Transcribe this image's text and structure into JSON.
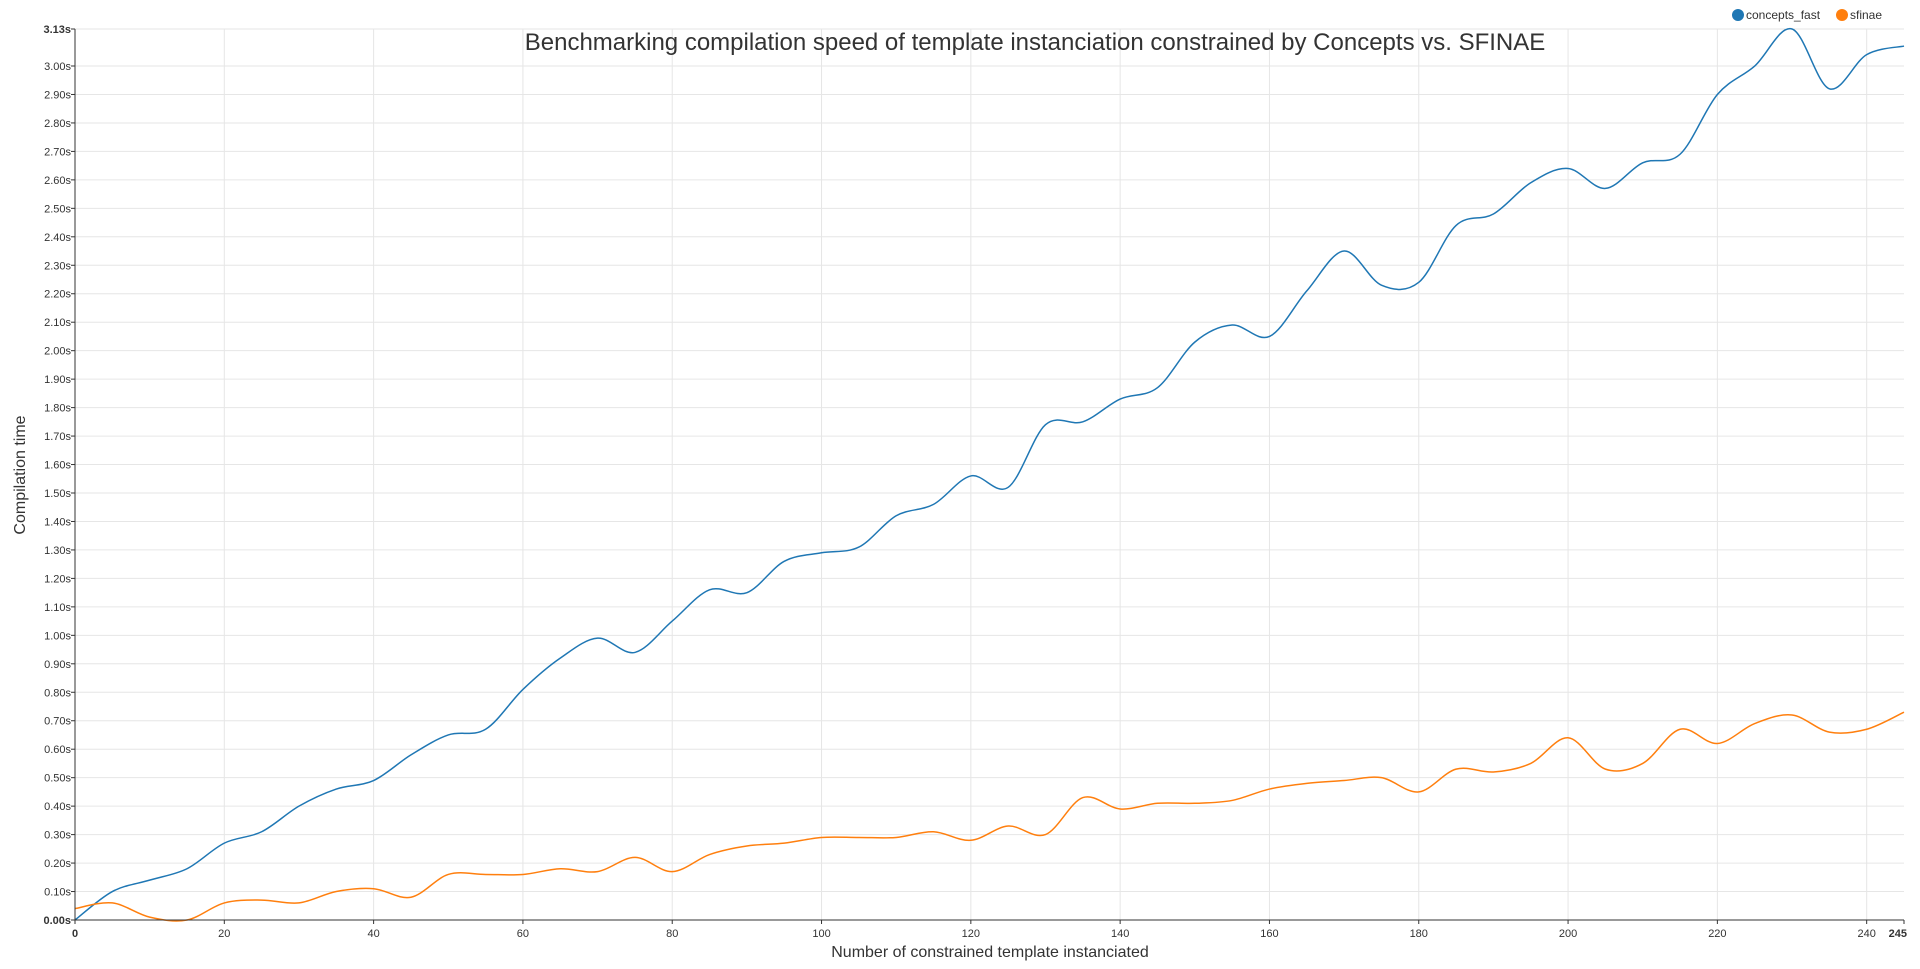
{
  "chart_data": {
    "type": "line",
    "title": "Benchmarking compilation speed of template instanciation constrained by Concepts vs. SFINAE",
    "xlabel": "Number of constrained template instanciated",
    "ylabel": "Compilation time",
    "xlim": [
      0,
      245
    ],
    "ylim": [
      0,
      3.13
    ],
    "x_ticks": [
      "0",
      "20",
      "40",
      "60",
      "80",
      "100",
      "120",
      "140",
      "160",
      "180",
      "200",
      "220",
      "240",
      "245"
    ],
    "y_ticks": [
      "0.00s",
      "0.10s",
      "0.20s",
      "0.30s",
      "0.40s",
      "0.50s",
      "0.60s",
      "0.70s",
      "0.80s",
      "0.90s",
      "1.00s",
      "1.10s",
      "1.20s",
      "1.30s",
      "1.40s",
      "1.50s",
      "1.60s",
      "1.70s",
      "1.80s",
      "1.90s",
      "2.00s",
      "2.10s",
      "2.20s",
      "2.30s",
      "2.40s",
      "2.50s",
      "2.60s",
      "2.70s",
      "2.80s",
      "2.90s",
      "3.00s",
      "3.13s"
    ],
    "grid": true,
    "legend_position": "top-right",
    "x": [
      0,
      5,
      10,
      15,
      20,
      25,
      30,
      35,
      40,
      45,
      50,
      55,
      60,
      65,
      70,
      75,
      80,
      85,
      90,
      95,
      100,
      105,
      110,
      115,
      120,
      125,
      130,
      135,
      140,
      145,
      150,
      155,
      160,
      165,
      170,
      175,
      180,
      185,
      190,
      195,
      200,
      205,
      210,
      215,
      220,
      225,
      230,
      235,
      240,
      245
    ],
    "series": [
      {
        "name": "concepts_fast",
        "color": "#1f77b4",
        "values": [
          0.0,
          0.1,
          0.14,
          0.18,
          0.27,
          0.31,
          0.4,
          0.46,
          0.49,
          0.58,
          0.65,
          0.67,
          0.81,
          0.92,
          0.99,
          0.94,
          1.05,
          1.16,
          1.15,
          1.26,
          1.29,
          1.31,
          1.42,
          1.46,
          1.56,
          1.52,
          1.74,
          1.75,
          1.83,
          1.87,
          2.03,
          2.09,
          2.05,
          2.21,
          2.35,
          2.23,
          2.24,
          2.44,
          2.48,
          2.59,
          2.64,
          2.57,
          2.66,
          2.69,
          2.9,
          3.0,
          3.13,
          2.92,
          3.04,
          3.07
        ]
      },
      {
        "name": "sfinae",
        "color": "#ff7f0e",
        "values": [
          0.04,
          0.06,
          0.01,
          0.0,
          0.06,
          0.07,
          0.06,
          0.1,
          0.11,
          0.08,
          0.16,
          0.16,
          0.16,
          0.18,
          0.17,
          0.22,
          0.17,
          0.23,
          0.26,
          0.27,
          0.29,
          0.29,
          0.29,
          0.31,
          0.28,
          0.33,
          0.3,
          0.43,
          0.39,
          0.41,
          0.41,
          0.42,
          0.46,
          0.48,
          0.49,
          0.5,
          0.45,
          0.53,
          0.52,
          0.55,
          0.64,
          0.53,
          0.55,
          0.67,
          0.62,
          0.69,
          0.72,
          0.66,
          0.67,
          0.73
        ]
      }
    ]
  }
}
